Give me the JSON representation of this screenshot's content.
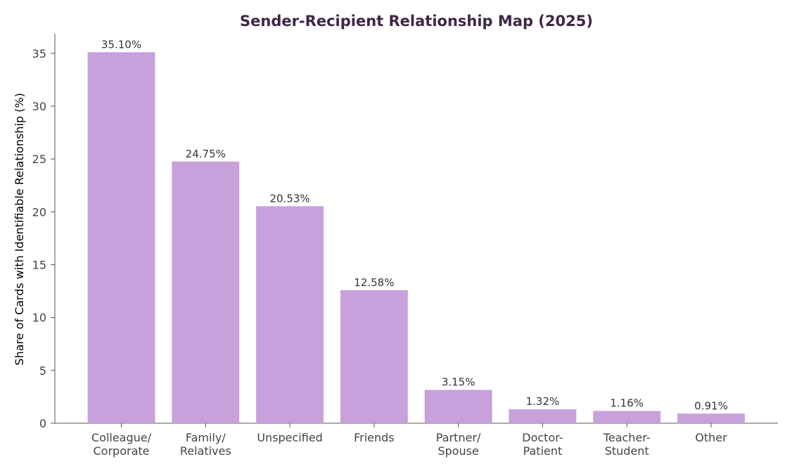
{
  "chart_data": {
    "type": "bar",
    "title": "Sender-Recipient Relationship Map (2025)",
    "xlabel": "",
    "ylabel": "Share of Cards with Identifiable Relationship (%)",
    "categories": [
      [
        "Colleague/",
        "Corporate"
      ],
      [
        "Family/",
        "Relatives"
      ],
      [
        "Unspecified"
      ],
      [
        "Friends"
      ],
      [
        "Partner/",
        "Spouse"
      ],
      [
        "Doctor-",
        "Patient"
      ],
      [
        "Teacher-",
        "Student"
      ],
      [
        "Other"
      ]
    ],
    "values": [
      35.1,
      24.75,
      20.53,
      12.58,
      3.15,
      1.32,
      1.16,
      0.91
    ],
    "value_labels": [
      "35.10%",
      "24.75%",
      "20.53%",
      "12.58%",
      "3.15%",
      "1.32%",
      "1.16%",
      "0.91%"
    ],
    "ylim": [
      0,
      36.85
    ],
    "yticks": [
      0,
      5,
      10,
      15,
      20,
      25,
      30,
      35
    ],
    "grid": false,
    "legend": "none",
    "colors": {
      "bar": "#c8a0dc",
      "title": "#3f2645"
    }
  }
}
